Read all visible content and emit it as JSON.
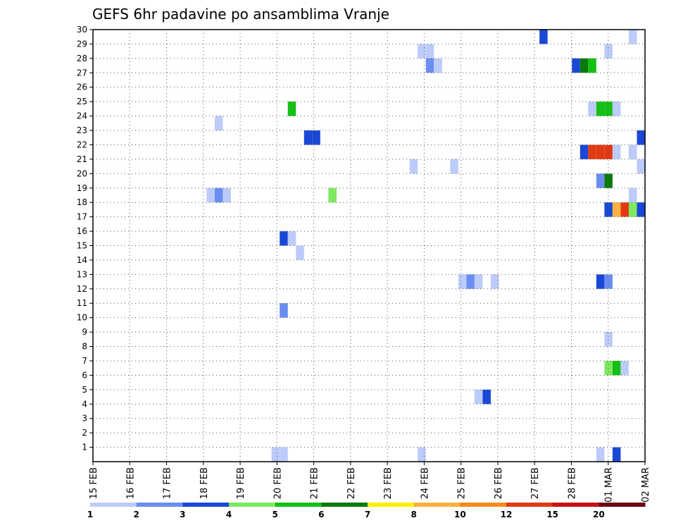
{
  "chart_data": {
    "type": "heatmap",
    "title": "GEFS 6hr padavine po ansamblima Vranje",
    "xlabel": "",
    "ylabel": "",
    "x_range": [
      0,
      68
    ],
    "x_tick_labels": [
      "15 FEB",
      "16 FEB",
      "17 FEB",
      "18 FEB",
      "19 FEB",
      "20 FEB",
      "21 FEB",
      "22 FEB",
      "23 FEB",
      "24 FEB",
      "25 FEB",
      "26 FEB",
      "27 FEB",
      "28 FEB",
      "01 MAR",
      "02 MAR"
    ],
    "y_range": [
      0,
      30
    ],
    "y_tick_labels": [
      "1",
      "2",
      "3",
      "4",
      "5",
      "6",
      "7",
      "8",
      "9",
      "10",
      "11",
      "12",
      "13",
      "14",
      "15",
      "16",
      "17",
      "18",
      "19",
      "20",
      "21",
      "22",
      "23",
      "24",
      "25",
      "26",
      "27",
      "28",
      "29",
      "30"
    ],
    "grid": true,
    "colorbar": {
      "bounds": [
        "1",
        "2",
        "3",
        "4",
        "5",
        "6",
        "7",
        "8",
        "10",
        "12",
        "15",
        "20"
      ],
      "colors": [
        "#bccbfa",
        "#6a8ef0",
        "#1a48d6",
        "#7ee860",
        "#14c014",
        "#0a7a0a",
        "#fff200",
        "#fbb040",
        "#f68a1f",
        "#e03a14",
        "#c41414",
        "#6b0a14"
      ]
    },
    "cells": [
      {
        "t": 55,
        "m": 30,
        "c": 2
      },
      {
        "t": 66,
        "m": 30,
        "c": 0
      },
      {
        "t": 40,
        "m": 29,
        "c": 0
      },
      {
        "t": 41,
        "m": 29,
        "c": 0
      },
      {
        "t": 63,
        "m": 29,
        "c": 0
      },
      {
        "t": 41,
        "m": 28,
        "c": 1
      },
      {
        "t": 42,
        "m": 28,
        "c": 0
      },
      {
        "t": 59,
        "m": 28,
        "c": 2
      },
      {
        "t": 60,
        "m": 28,
        "c": 5
      },
      {
        "t": 61,
        "m": 28,
        "c": 4
      },
      {
        "t": 61,
        "m": 25,
        "c": 0
      },
      {
        "t": 62,
        "m": 25,
        "c": 4
      },
      {
        "t": 63,
        "m": 25,
        "c": 4
      },
      {
        "t": 64,
        "m": 25,
        "c": 0
      },
      {
        "t": 24,
        "m": 25,
        "c": 4
      },
      {
        "t": 15,
        "m": 24,
        "c": 0
      },
      {
        "t": 26,
        "m": 23,
        "c": 2
      },
      {
        "t": 27,
        "m": 23,
        "c": 2
      },
      {
        "t": 67,
        "m": 23,
        "c": 2
      },
      {
        "t": 60,
        "m": 22,
        "c": 2
      },
      {
        "t": 61,
        "m": 22,
        "c": 9
      },
      {
        "t": 62,
        "m": 22,
        "c": 9
      },
      {
        "t": 63,
        "m": 22,
        "c": 9
      },
      {
        "t": 64,
        "m": 22,
        "c": 0
      },
      {
        "t": 66,
        "m": 22,
        "c": 0
      },
      {
        "t": 39,
        "m": 21,
        "c": 0
      },
      {
        "t": 44,
        "m": 21,
        "c": 0
      },
      {
        "t": 67,
        "m": 21,
        "c": 0
      },
      {
        "t": 62,
        "m": 20,
        "c": 1
      },
      {
        "t": 63,
        "m": 20,
        "c": 5
      },
      {
        "t": 14,
        "m": 19,
        "c": 0
      },
      {
        "t": 15,
        "m": 19,
        "c": 1
      },
      {
        "t": 16,
        "m": 19,
        "c": 0
      },
      {
        "t": 29,
        "m": 19,
        "c": 3
      },
      {
        "t": 66,
        "m": 19,
        "c": 0
      },
      {
        "t": 63,
        "m": 18,
        "c": 2
      },
      {
        "t": 64,
        "m": 18,
        "c": 7
      },
      {
        "t": 65,
        "m": 18,
        "c": 9
      },
      {
        "t": 66,
        "m": 18,
        "c": 3
      },
      {
        "t": 67,
        "m": 18,
        "c": 2
      },
      {
        "t": 23,
        "m": 16,
        "c": 2
      },
      {
        "t": 24,
        "m": 16,
        "c": 0
      },
      {
        "t": 25,
        "m": 15,
        "c": 0
      },
      {
        "t": 45,
        "m": 13,
        "c": 0
      },
      {
        "t": 46,
        "m": 13,
        "c": 1
      },
      {
        "t": 47,
        "m": 13,
        "c": 0
      },
      {
        "t": 49,
        "m": 13,
        "c": 0
      },
      {
        "t": 62,
        "m": 13,
        "c": 2
      },
      {
        "t": 63,
        "m": 13,
        "c": 1
      },
      {
        "t": 23,
        "m": 11,
        "c": 1
      },
      {
        "t": 63,
        "m": 9,
        "c": 0
      },
      {
        "t": 63,
        "m": 7,
        "c": 3
      },
      {
        "t": 64,
        "m": 7,
        "c": 4
      },
      {
        "t": 65,
        "m": 7,
        "c": 0
      },
      {
        "t": 47,
        "m": 5,
        "c": 0
      },
      {
        "t": 48,
        "m": 5,
        "c": 2
      },
      {
        "t": 22,
        "m": 1,
        "c": 0
      },
      {
        "t": 23,
        "m": 1,
        "c": 0
      },
      {
        "t": 40,
        "m": 1,
        "c": 0
      },
      {
        "t": 62,
        "m": 1,
        "c": 0
      },
      {
        "t": 64,
        "m": 1,
        "c": 2
      }
    ]
  }
}
